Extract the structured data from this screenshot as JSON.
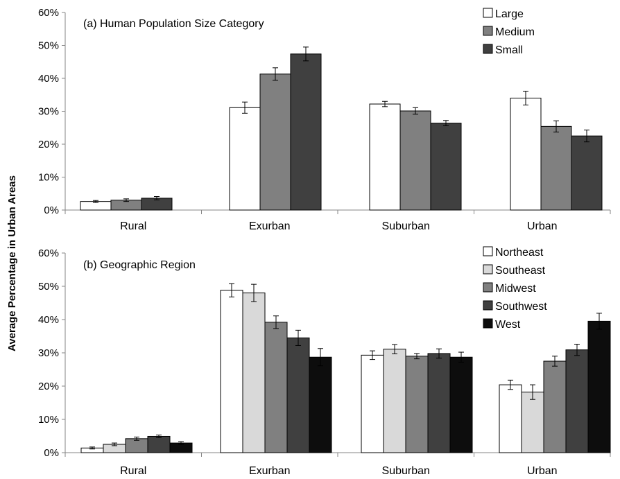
{
  "ylabel": "Average Percentage in Urban Areas",
  "chart_data": [
    {
      "type": "bar",
      "title": "(a) Human Population Size Category",
      "xlabel": "",
      "ylabel": "Average Percentage in Urban Areas",
      "categories": [
        "Rural",
        "Exurban",
        "Suburban",
        "Urban"
      ],
      "ylim": [
        0,
        60
      ],
      "yticks": [
        0,
        10,
        20,
        30,
        40,
        50,
        60
      ],
      "ytick_labels": [
        "0%",
        "10%",
        "20%",
        "30%",
        "40%",
        "50%",
        "60%"
      ],
      "grid": false,
      "legend_position": "top-right",
      "series": [
        {
          "name": "Large",
          "color": "#ffffff",
          "values": [
            2.6,
            31.1,
            32.2,
            34.0
          ],
          "errors": [
            0.3,
            1.7,
            0.8,
            2.1
          ]
        },
        {
          "name": "Medium",
          "color": "#808080",
          "values": [
            3.0,
            41.3,
            30.1,
            25.4
          ],
          "errors": [
            0.4,
            1.9,
            1.0,
            1.7
          ]
        },
        {
          "name": "Small",
          "color": "#404040",
          "values": [
            3.6,
            47.4,
            26.4,
            22.5
          ],
          "errors": [
            0.5,
            2.1,
            0.8,
            1.8
          ]
        }
      ]
    },
    {
      "type": "bar",
      "title": "(b) Geographic Region",
      "xlabel": "",
      "ylabel": "Average Percentage in Urban Areas",
      "categories": [
        "Rural",
        "Exurban",
        "Suburban",
        "Urban"
      ],
      "ylim": [
        0,
        60
      ],
      "yticks": [
        0,
        10,
        20,
        30,
        40,
        50,
        60
      ],
      "ytick_labels": [
        "0%",
        "10%",
        "20%",
        "30%",
        "40%",
        "50%",
        "60%"
      ],
      "grid": false,
      "legend_position": "top-right",
      "series": [
        {
          "name": "Northeast",
          "color": "#ffffff",
          "values": [
            1.4,
            48.8,
            29.3,
            20.4
          ],
          "errors": [
            0.3,
            2.0,
            1.3,
            1.4
          ]
        },
        {
          "name": "Southeast",
          "color": "#d9d9d9",
          "values": [
            2.5,
            48.0,
            31.1,
            18.2
          ],
          "errors": [
            0.4,
            2.6,
            1.4,
            2.2
          ]
        },
        {
          "name": "Midwest",
          "color": "#808080",
          "values": [
            4.2,
            39.2,
            29.0,
            27.5
          ],
          "errors": [
            0.5,
            1.9,
            0.8,
            1.5
          ]
        },
        {
          "name": "Southwest",
          "color": "#404040",
          "values": [
            4.9,
            34.5,
            29.8,
            30.9
          ],
          "errors": [
            0.4,
            2.3,
            1.4,
            1.7
          ]
        },
        {
          "name": "West",
          "color": "#0d0d0d",
          "values": [
            2.9,
            28.7,
            28.7,
            39.5
          ],
          "errors": [
            0.4,
            2.6,
            1.5,
            2.4
          ]
        }
      ]
    }
  ]
}
